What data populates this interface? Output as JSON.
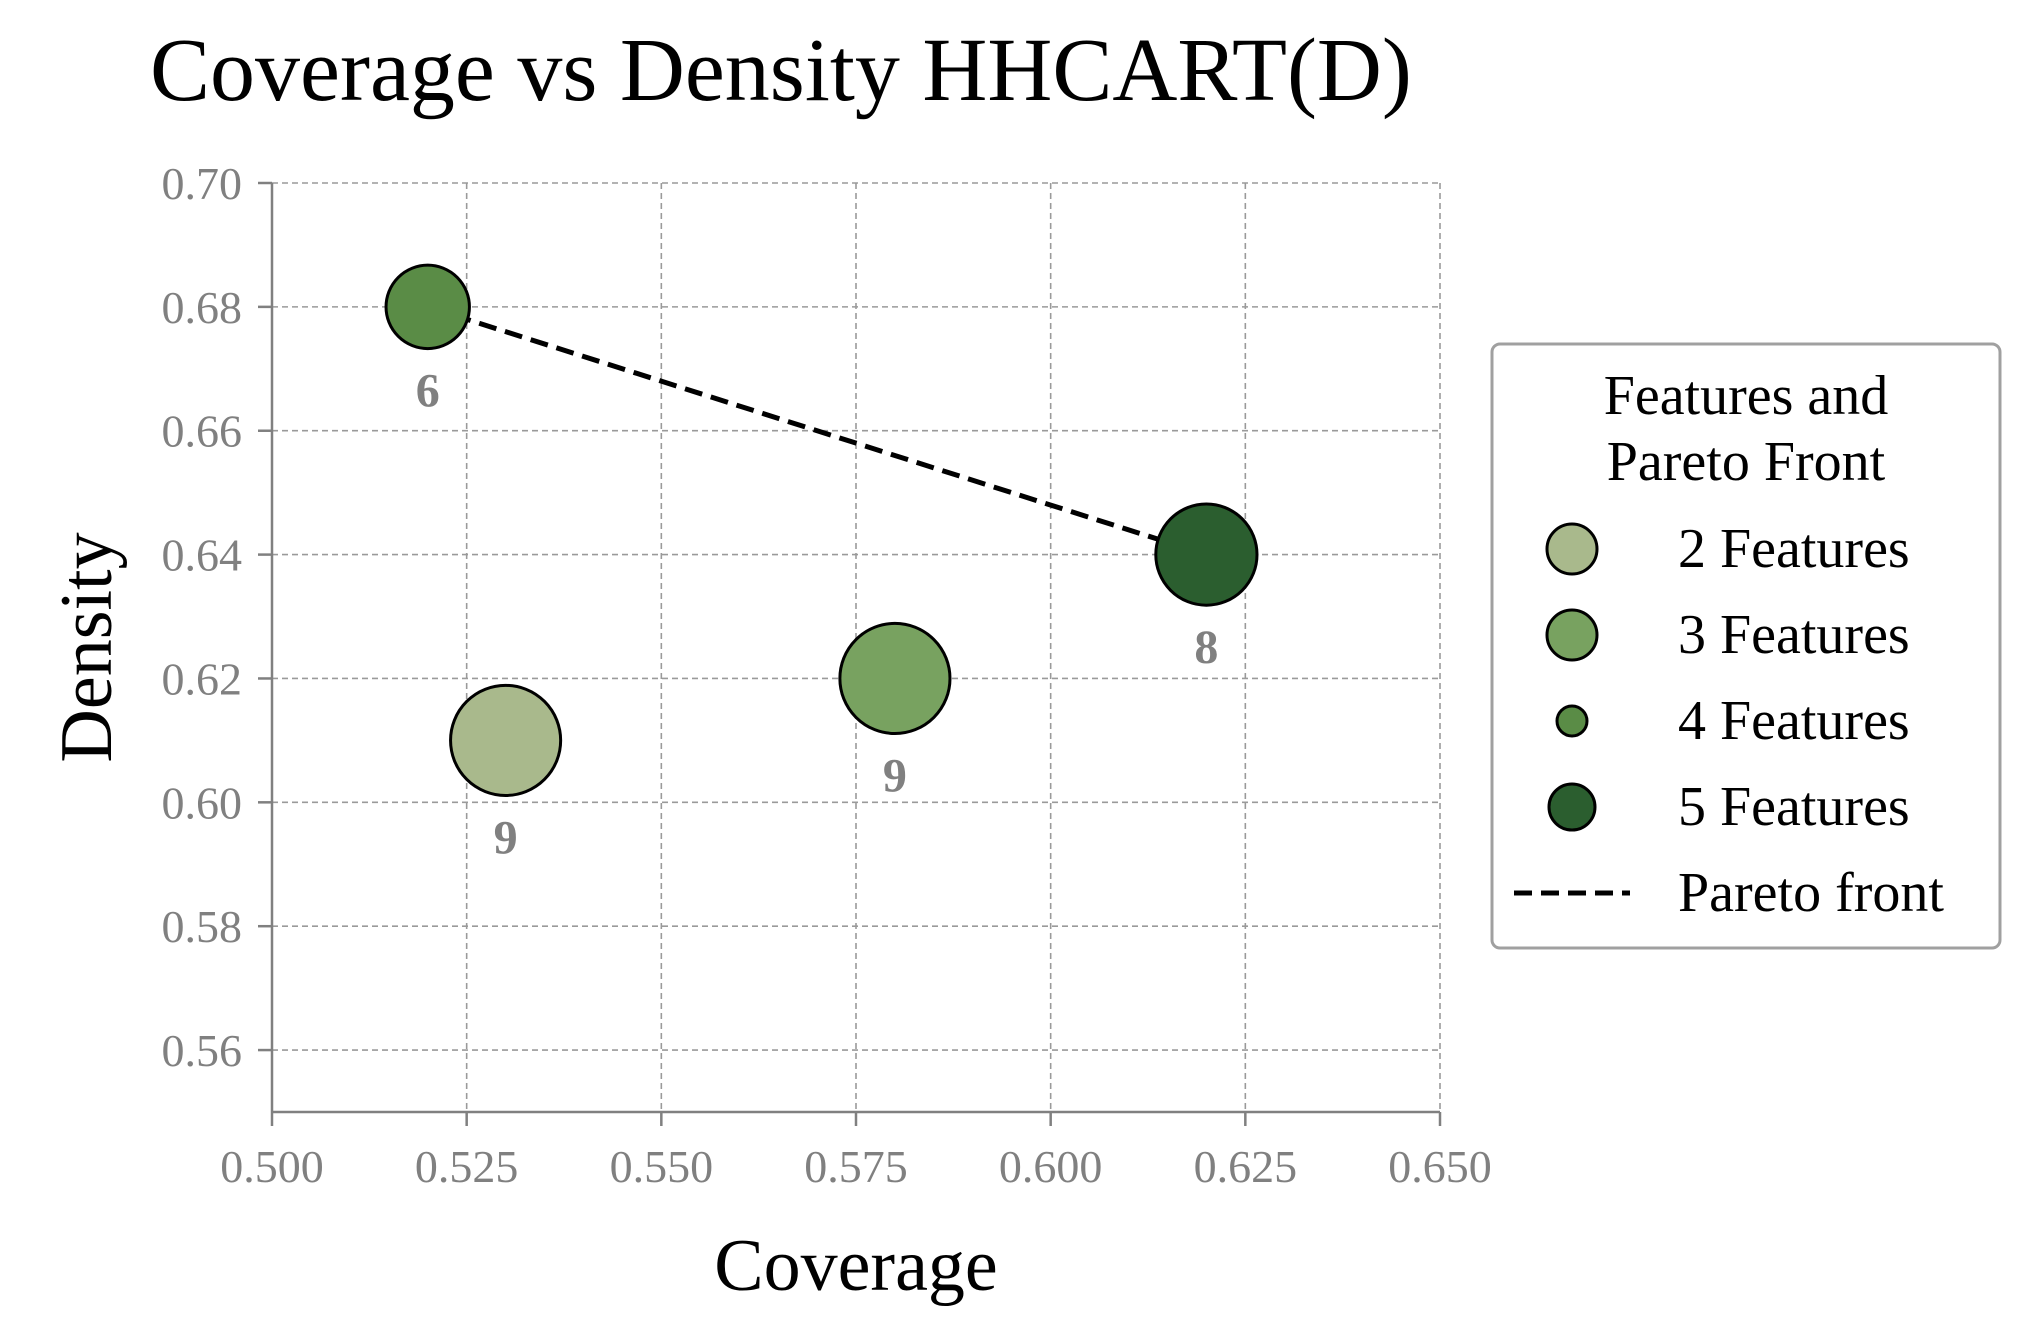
{
  "chart_data": {
    "type": "scatter",
    "title": "Coverage vs Density HHCART(D)",
    "xlabel": "Coverage",
    "ylabel": "Density",
    "xlim": [
      0.5,
      0.65
    ],
    "ylim": [
      0.55,
      0.7
    ],
    "xticks": [
      "0.500",
      "0.525",
      "0.550",
      "0.575",
      "0.600",
      "0.625",
      "0.650"
    ],
    "yticks": [
      "0.56",
      "0.58",
      "0.60",
      "0.62",
      "0.64",
      "0.66",
      "0.68",
      "0.70"
    ],
    "grid": true,
    "legend_position": "right",
    "legend_title": "Features and\nPareto Front",
    "series": [
      {
        "name": "2 Features",
        "color": "#a9b98c",
        "points": [
          {
            "x": 0.53,
            "y": 0.61,
            "label": "9",
            "size": 9
          }
        ]
      },
      {
        "name": "3 Features",
        "color": "#78a260",
        "points": [
          {
            "x": 0.58,
            "y": 0.62,
            "label": "9",
            "size": 9
          }
        ]
      },
      {
        "name": "4 Features",
        "color": "#5a8c46",
        "points": [
          {
            "x": 0.52,
            "y": 0.68,
            "label": "6",
            "size": 6
          }
        ]
      },
      {
        "name": "5 Features",
        "color": "#2b5e2f",
        "points": [
          {
            "x": 0.62,
            "y": 0.64,
            "label": "8",
            "size": 8
          }
        ]
      }
    ],
    "pareto_front": {
      "name": "Pareto front",
      "style": "dashed",
      "color": "#000000",
      "points": [
        {
          "x": 0.52,
          "y": 0.68
        },
        {
          "x": 0.62,
          "y": 0.64
        }
      ]
    }
  }
}
